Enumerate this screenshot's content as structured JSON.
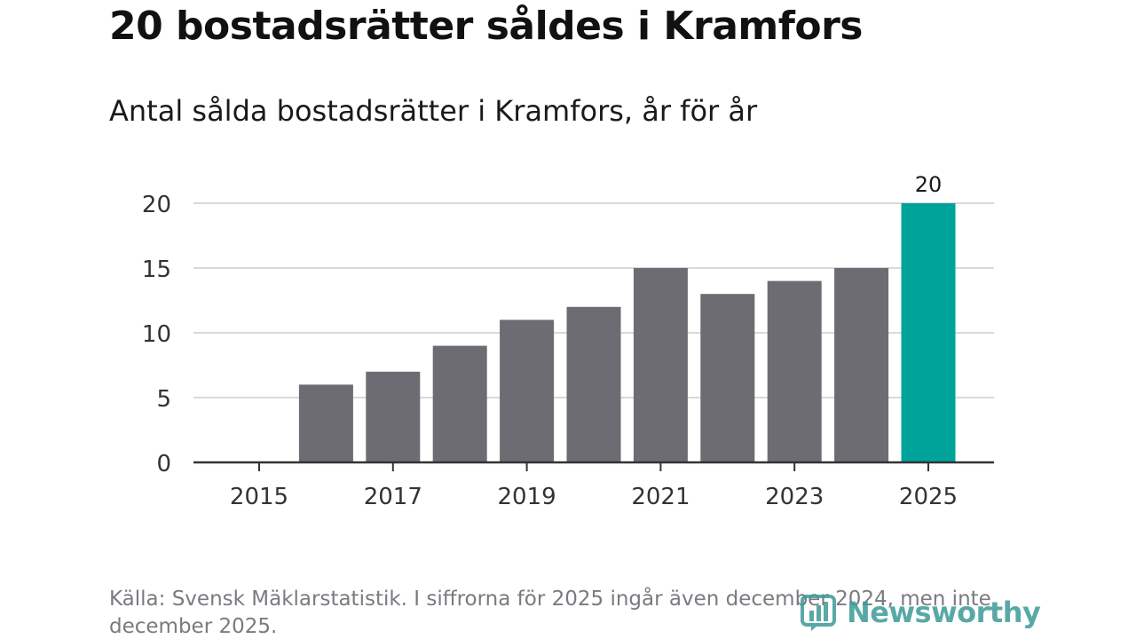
{
  "title": "20 bostadsrätter såldes i Kramfors",
  "subtitle": "Antal sålda bostadsrätter i Kramfors, år för år",
  "source": "Källa: Svensk Mäklarstatistik. I siffrorna för 2025 ingår även december 2024, men inte december 2025.",
  "brand": "Newsworthy",
  "colors": {
    "bar": "#6d6c72",
    "highlight": "#00a39a",
    "grid": "#d9d9d9",
    "axis": "#333333"
  },
  "chart_data": {
    "type": "bar",
    "title": "20 bostadsrätter såldes i Kramfors",
    "subtitle": "Antal sålda bostadsrätter i Kramfors, år för år",
    "xlabel": "",
    "ylabel": "",
    "categories": [
      "2015",
      "2016",
      "2017",
      "2018",
      "2019",
      "2020",
      "2021",
      "2022",
      "2023",
      "2024",
      "2025"
    ],
    "values": [
      0,
      6,
      7,
      9,
      11,
      12,
      15,
      13,
      14,
      15,
      20
    ],
    "x_tick_labels": [
      "2015",
      "2017",
      "2019",
      "2021",
      "2023",
      "2025"
    ],
    "y_ticks": [
      0,
      5,
      10,
      15,
      20
    ],
    "ylim": [
      0,
      20
    ],
    "highlight_category": "2025",
    "data_labels": [
      {
        "category": "2025",
        "label": "20"
      }
    ],
    "grid": true,
    "legend": "none"
  }
}
